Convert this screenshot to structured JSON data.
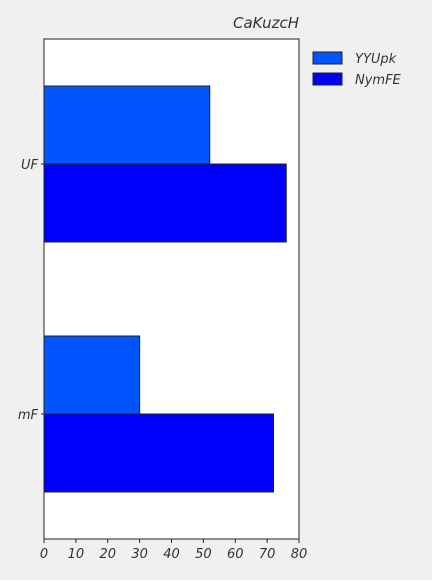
{
  "chart_data": {
    "type": "bar",
    "orientation": "horizontal",
    "title": "CaKuzcH",
    "xlabel": "",
    "ylabel": "",
    "categories": [
      "UF",
      "mF"
    ],
    "series": [
      {
        "name": "YYUpk",
        "values": [
          52,
          30
        ],
        "color": "#0055ff"
      },
      {
        "name": "NymFE",
        "values": [
          76,
          72
        ],
        "color": "#0000ff"
      }
    ],
    "xlim": [
      0,
      80
    ],
    "xticks": [
      0,
      10,
      20,
      30,
      40,
      50,
      60,
      70,
      80
    ],
    "grid": false,
    "legend_position": "top-right (outside plot)",
    "colors": {
      "background": "#f0f0f0",
      "plot_background": "#ffffff",
      "edge": "#222222",
      "text": "#333333"
    }
  }
}
